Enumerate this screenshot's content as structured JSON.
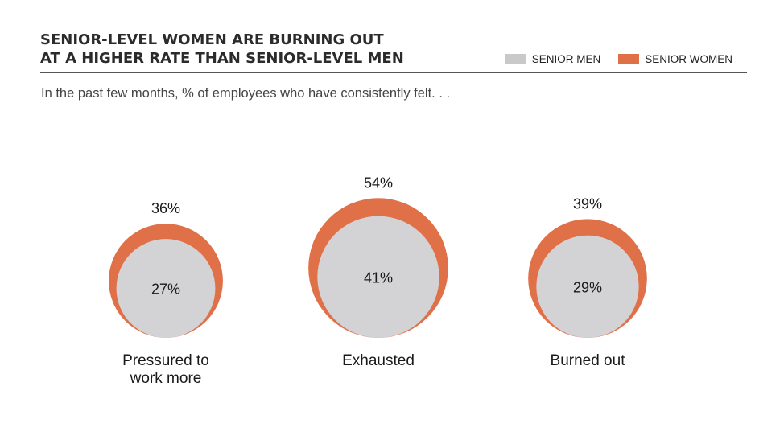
{
  "chart_data": {
    "type": "nested-bubble",
    "title": "SENIOR-LEVEL WOMEN ARE BURNING OUT AT A HIGHER RATE THAN SENIOR-LEVEL MEN",
    "title_lines": [
      "SENIOR-LEVEL WOMEN ARE BURNING OUT",
      "AT A HIGHER RATE THAN SENIOR-LEVEL MEN"
    ],
    "subtitle": "In the past few months, % of employees who have consistently felt. . .",
    "legend": [
      {
        "name": "SENIOR MEN",
        "color": "#c9c9c9"
      },
      {
        "name": "SENIOR WOMEN",
        "color": "#e07048"
      }
    ],
    "categories": [
      {
        "label_lines": [
          "Pressured to",
          "work more"
        ],
        "women": 36,
        "men": 27
      },
      {
        "label_lines": [
          "Exhausted"
        ],
        "women": 54,
        "men": 41
      },
      {
        "label_lines": [
          "Burned out"
        ],
        "women": 39,
        "men": 29
      }
    ],
    "series": [
      {
        "name": "SENIOR WOMEN",
        "values": [
          36,
          54,
          39
        ]
      },
      {
        "name": "SENIOR MEN",
        "values": [
          27,
          41,
          29
        ]
      }
    ],
    "value_suffix": "%",
    "colors": {
      "women": "#e07048",
      "men": "#d3d3d5"
    }
  }
}
